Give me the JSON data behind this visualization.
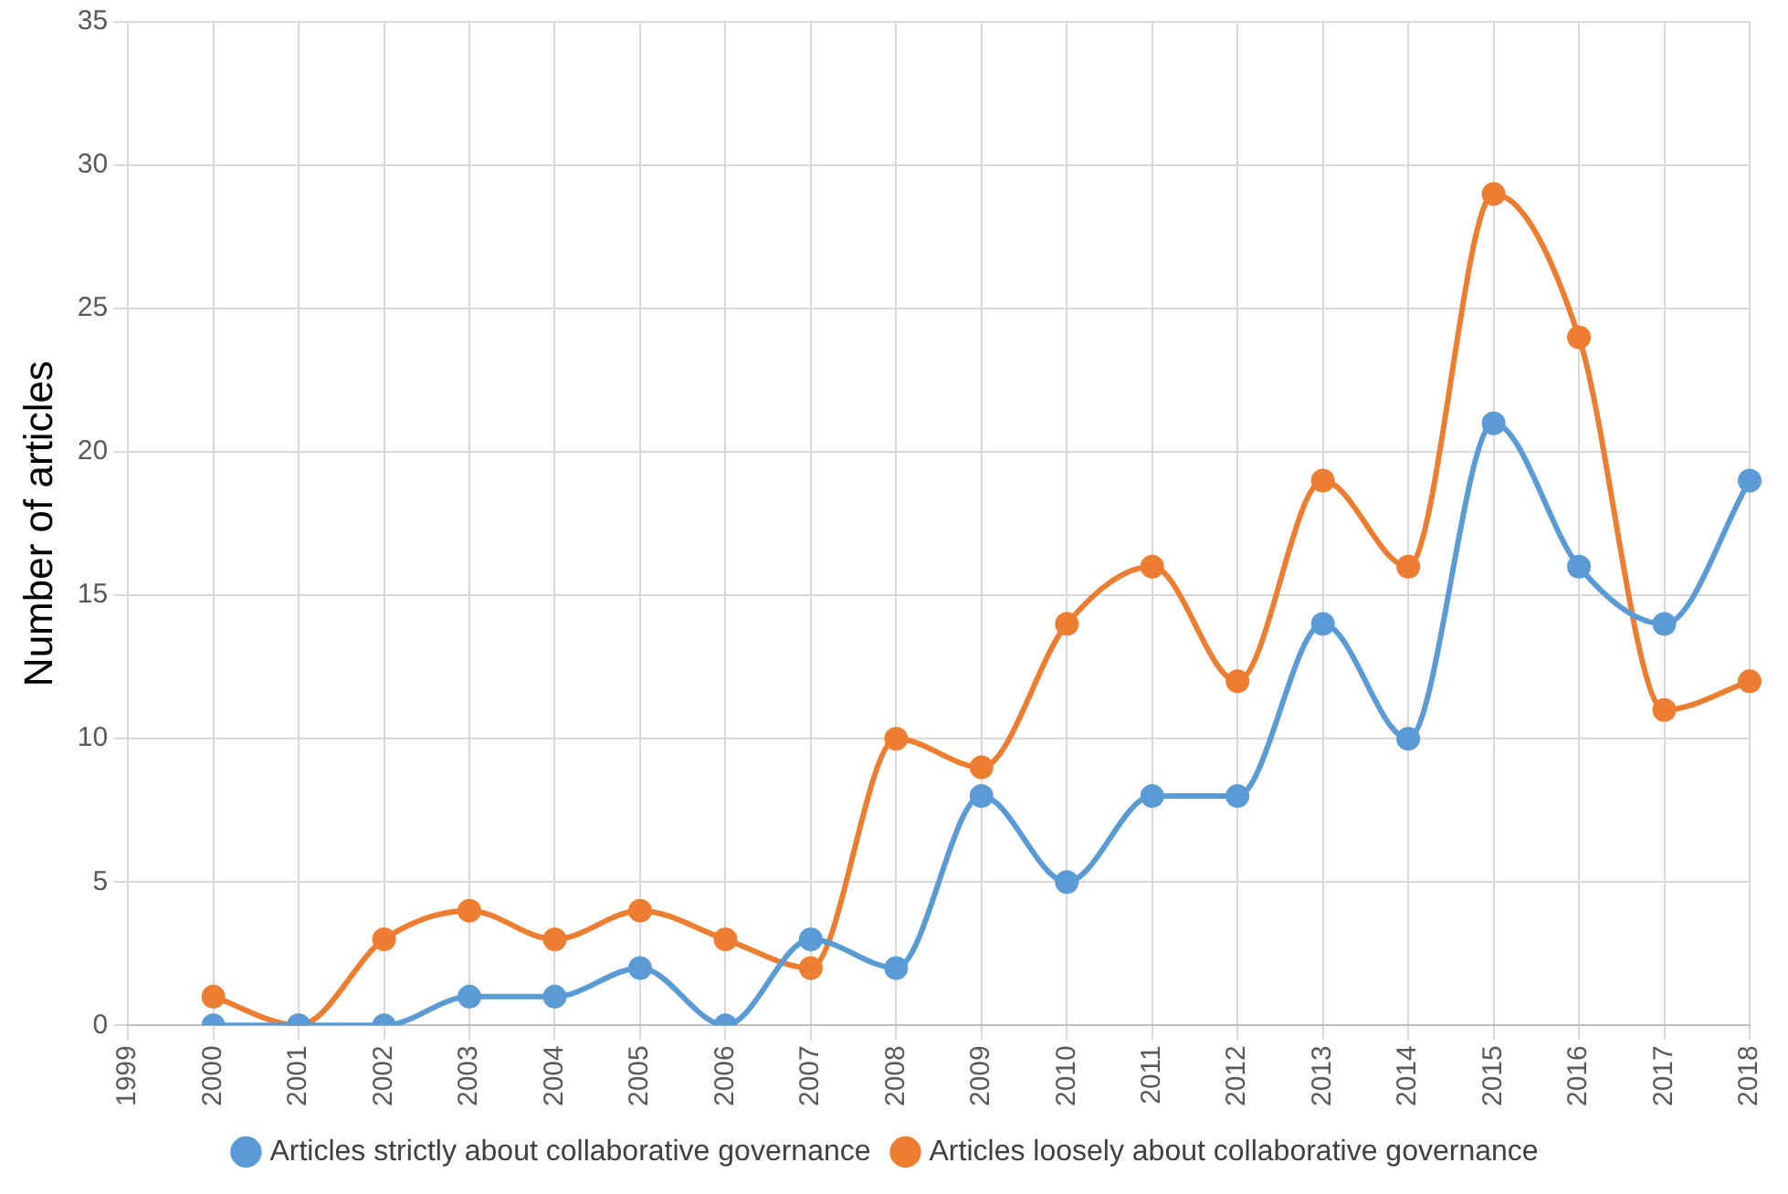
{
  "chart_data": {
    "type": "line",
    "ylabel": "Number of articles",
    "categories": [
      "1999",
      "2000",
      "2001",
      "2002",
      "2003",
      "2004",
      "2005",
      "2006",
      "2007",
      "2008",
      "2009",
      "2010",
      "2011",
      "2012",
      "2013",
      "2014",
      "2015",
      "2016",
      "2017",
      "2018"
    ],
    "series": [
      {
        "name": "Articles strictly about collaborative governance",
        "color": "#5b9bd5",
        "values": [
          null,
          0,
          0,
          0,
          1,
          1,
          2,
          0,
          3,
          2,
          8,
          5,
          8,
          8,
          14,
          10,
          21,
          16,
          14,
          19
        ]
      },
      {
        "name": "Articles loosely about collaborative governance",
        "color": "#ed7d31",
        "values": [
          null,
          1,
          0,
          3,
          4,
          3,
          4,
          3,
          2,
          10,
          9,
          14,
          16,
          12,
          19,
          16,
          29,
          24,
          11,
          12
        ]
      }
    ],
    "ylim": [
      0,
      35
    ],
    "yticks": [
      0,
      5,
      10,
      15,
      20,
      25,
      30,
      35
    ],
    "grid": true,
    "legend": "bottom",
    "marker": "circle",
    "line_style": "solid"
  }
}
